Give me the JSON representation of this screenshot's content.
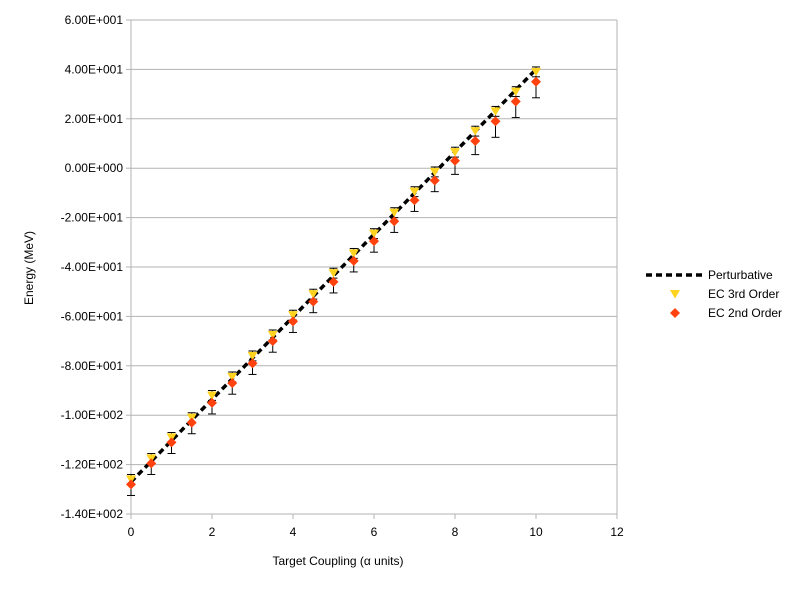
{
  "chart_data": {
    "type": "scatter",
    "title": "",
    "xlabel": "Target Coupling (α units)",
    "ylabel": "Energy (MeV)",
    "xlim": [
      0,
      12
    ],
    "ylim": [
      -140,
      60
    ],
    "x_ticks": [
      0,
      2,
      4,
      6,
      8,
      10,
      12
    ],
    "x_tick_labels": [
      "0",
      "2",
      "4",
      "6",
      "8",
      "10",
      "12"
    ],
    "y_ticks": [
      60,
      40,
      20,
      0,
      -20,
      -40,
      -60,
      -80,
      -100,
      -120,
      -140
    ],
    "y_tick_labels": [
      "6.00E+001",
      "4.00E+001",
      "2.00E+001",
      "0.00E+000",
      "-2.00E+001",
      "-4.00E+001",
      "-6.00E+001",
      "-8.00E+001",
      "-1.00E+002",
      "-1.20E+002",
      "-1.40E+002"
    ],
    "grid": "horizontal",
    "legend_position": "right",
    "series": [
      {
        "name": "Perturbative",
        "style": "dashed-line",
        "color": "#000000",
        "x": [
          0,
          10
        ],
        "y": [
          -127,
          40
        ]
      },
      {
        "name": "EC 3rd Order",
        "style": "triangle-down",
        "color": "#ffd320",
        "x": [
          0,
          0.5,
          1,
          1.5,
          2,
          2.5,
          3,
          3.5,
          4,
          4.5,
          5,
          5.5,
          6,
          6.5,
          7,
          7.5,
          8,
          8.5,
          9,
          9.5,
          10
        ],
        "y": [
          -126,
          -117.5,
          -109,
          -101,
          -92,
          -84.5,
          -76,
          -67.5,
          -59.5,
          -51,
          -42.5,
          -34.5,
          -26.5,
          -18,
          -9.5,
          -1.5,
          6.5,
          15,
          23,
          31,
          39
        ],
        "err_plus": [
          2,
          2,
          2,
          2,
          2,
          2,
          2,
          2,
          2,
          2,
          2,
          2,
          2,
          2,
          2,
          2,
          2,
          2,
          2,
          2,
          2
        ],
        "err_minus": [
          2,
          2,
          2,
          2,
          2,
          2,
          2,
          2,
          2,
          2,
          2,
          2,
          2,
          2,
          2,
          2,
          2,
          2,
          2,
          2,
          2
        ]
      },
      {
        "name": "EC 2nd Order",
        "style": "diamond",
        "color": "#ff420e",
        "x": [
          0,
          0.5,
          1,
          1.5,
          2,
          2.5,
          3,
          3.5,
          4,
          4.5,
          5,
          5.5,
          6,
          6.5,
          7,
          7.5,
          8,
          8.5,
          9,
          9.5,
          10
        ],
        "y": [
          -128,
          -119.5,
          -111,
          -103,
          -95,
          -87,
          -79,
          -70,
          -62,
          -54,
          -46,
          -37.5,
          -29.5,
          -21.5,
          -13,
          -5,
          3,
          11,
          19,
          27,
          35
        ],
        "err_plus": [
          0,
          0,
          0,
          0,
          0,
          0,
          0,
          0,
          0,
          0,
          0,
          0,
          0,
          0,
          0,
          0,
          0,
          0,
          0,
          0,
          0
        ],
        "err_minus": [
          4.5,
          4.5,
          4.5,
          4.5,
          4.5,
          4.5,
          4.5,
          4.5,
          4.5,
          4.5,
          4.5,
          4.5,
          4.5,
          4.5,
          4.5,
          4.5,
          5.5,
          5.5,
          6.5,
          6.5,
          6.5
        ]
      }
    ]
  }
}
